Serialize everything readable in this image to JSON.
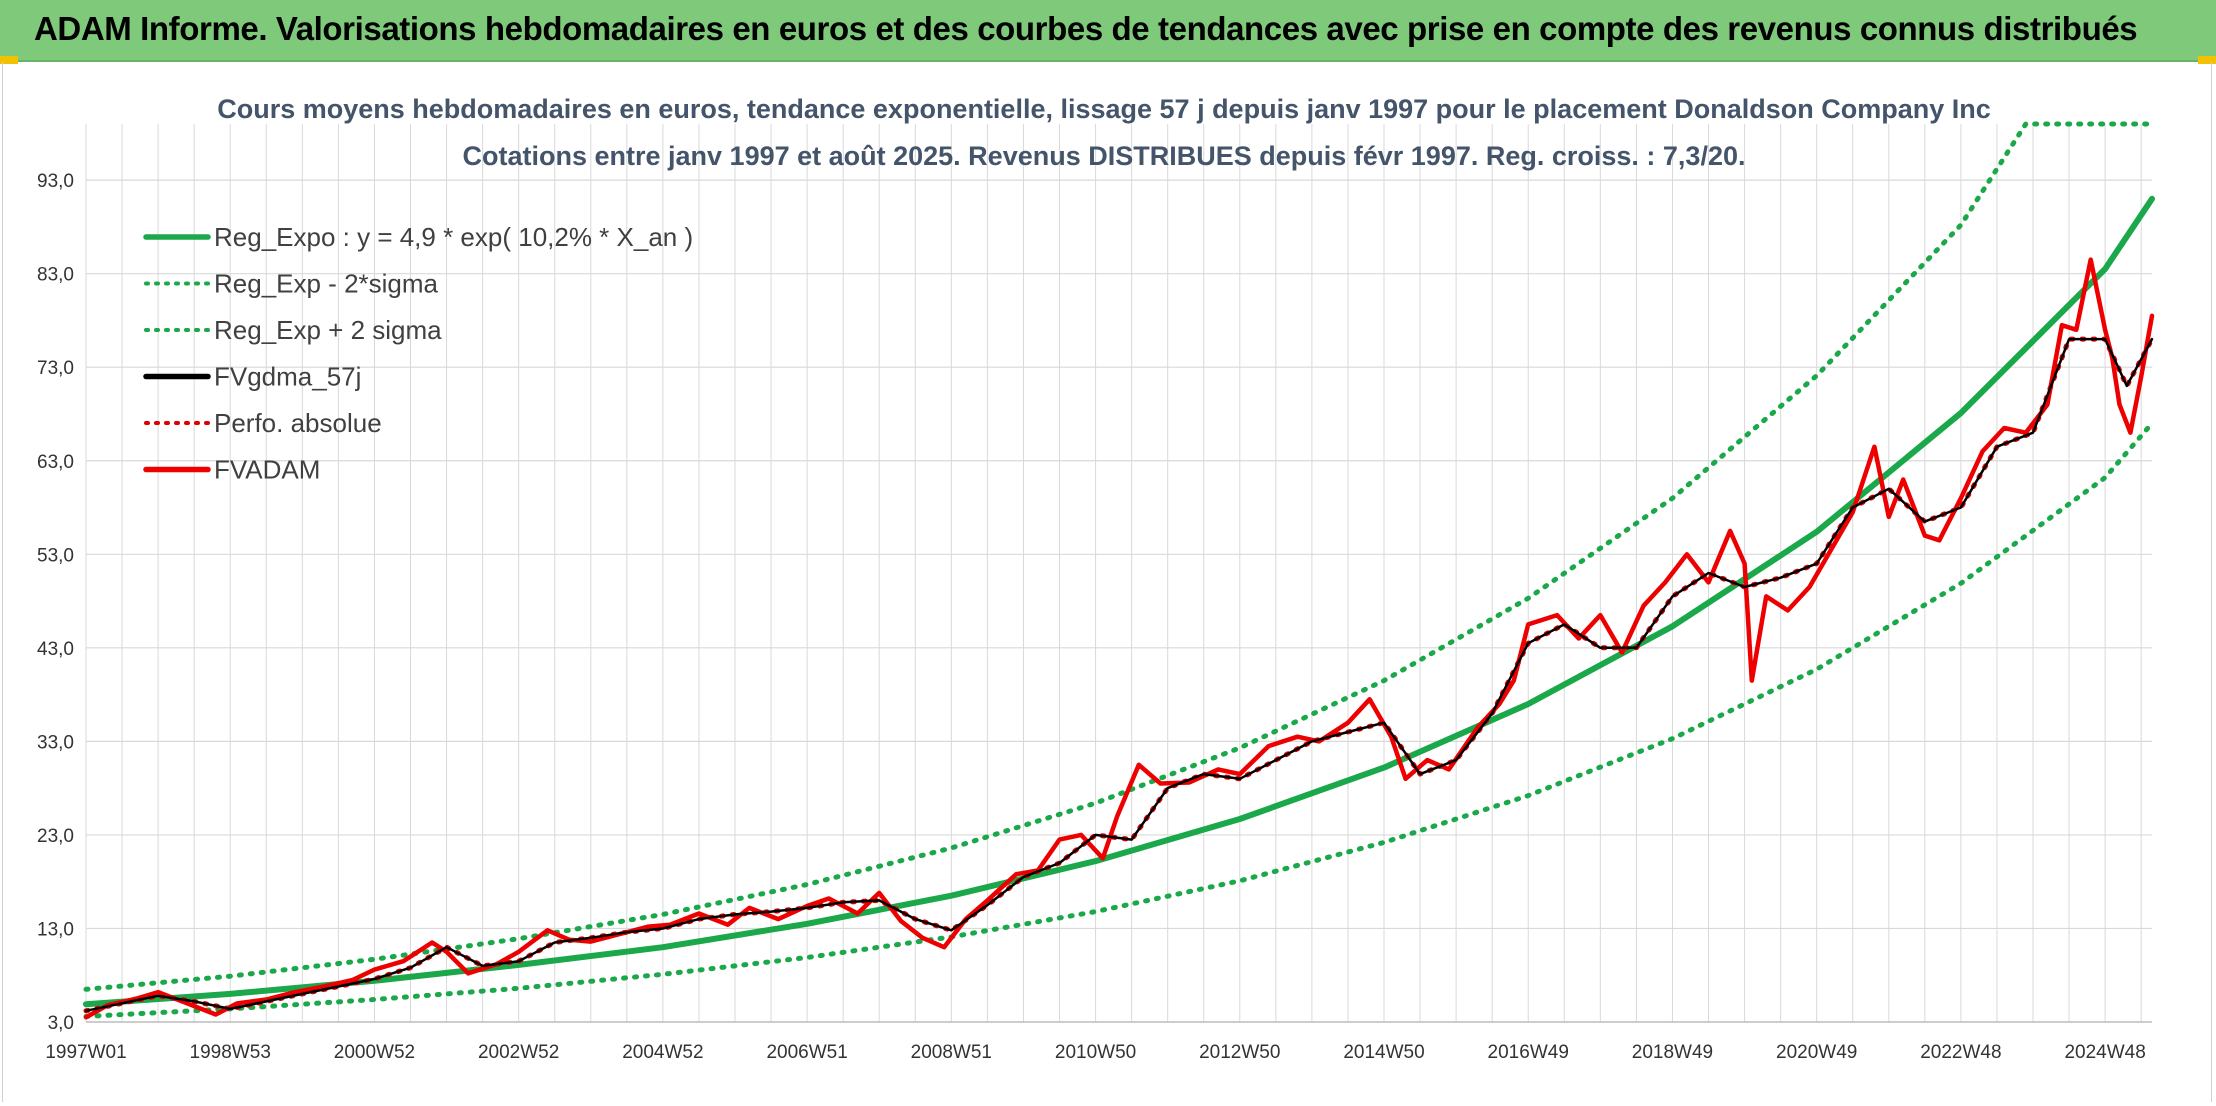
{
  "banner": {
    "title": "ADAM Informe. Valorisations hebdomadaires en euros et des courbes de tendances avec prise en compte des revenus connus distribués"
  },
  "colors": {
    "banner_bg": "#7fc97a",
    "reg_expo": "#1aa84a",
    "band": "#1aa84a",
    "fvgdma": "#000000",
    "perfo": "#e00000",
    "fvadam": "#ee0000",
    "grid": "#d9d9d9"
  },
  "chart_data": {
    "type": "line",
    "title": "Cours moyens hebdomadaires en euros, tendance exponentielle, lissage 57 j depuis janv 1997 pour le placement Donaldson Company Inc",
    "subtitle": "Cotations entre janv 1997 et août 2025. Revenus DISTRIBUES depuis févr 1997. Reg. croiss. : 7,3/20.",
    "ylim": [
      3,
      99
    ],
    "yticks": [
      3,
      13,
      23,
      33,
      43,
      53,
      63,
      73,
      83,
      93
    ],
    "ytick_labels": [
      "3,0",
      "13,0",
      "23,0",
      "33,0",
      "43,0",
      "53,0",
      "63,0",
      "73,0",
      "83,0",
      "93,0"
    ],
    "xlim": [
      1997.0,
      2025.65
    ],
    "xticks": [
      1997.0,
      1999.0,
      2001.0,
      2003.0,
      2005.0,
      2007.0,
      2009.0,
      2011.0,
      2013.0,
      2015.0,
      2017.0,
      2019.0,
      2021.0,
      2023.0,
      2025.0
    ],
    "xtick_labels": [
      "1997W01",
      "1998W53",
      "2000W52",
      "2002W52",
      "2004W52",
      "2006W51",
      "2008W51",
      "2010W50",
      "2012W50",
      "2014W50",
      "2016W49",
      "2018W49",
      "2020W49",
      "2022W48",
      "2024W48"
    ],
    "grid": true,
    "legend_placement": "top-left",
    "series": [
      {
        "name": "Reg_Expo : y = 4,9 * exp( 10,2% *  X_an )",
        "style": "solid-thick",
        "color": "#1aa84a",
        "x": [
          1997.0,
          1999.0,
          2001.0,
          2003.0,
          2005.0,
          2007.0,
          2009.0,
          2011.0,
          2013.0,
          2015.0,
          2017.0,
          2019.0,
          2021.0,
          2023.0,
          2025.0,
          2025.65
        ],
        "y": [
          4.9,
          6.0,
          7.4,
          9.1,
          11.0,
          13.5,
          16.5,
          20.2,
          24.7,
          30.2,
          37.0,
          45.3,
          55.4,
          68.1,
          83.5,
          91.0
        ]
      },
      {
        "name": "Reg_Exp - 2*sigma",
        "style": "dotted",
        "color": "#1aa84a",
        "x": [
          1997.0,
          1999.0,
          2001.0,
          2003.0,
          2005.0,
          2007.0,
          2009.0,
          2011.0,
          2013.0,
          2015.0,
          2017.0,
          2019.0,
          2021.0,
          2023.0,
          2025.0,
          2025.65
        ],
        "y": [
          3.6,
          4.4,
          5.4,
          6.6,
          8.1,
          9.9,
          12.1,
          14.8,
          18.1,
          22.2,
          27.2,
          33.3,
          40.7,
          49.9,
          61.2,
          67.0
        ]
      },
      {
        "name": "Reg_Exp + 2 sigma",
        "style": "dotted",
        "color": "#1aa84a",
        "x": [
          1997.0,
          1999.0,
          2001.0,
          2003.0,
          2005.0,
          2007.0,
          2009.0,
          2011.0,
          2013.0,
          2015.0,
          2017.0,
          2019.0,
          2021.0,
          2023.0,
          2023.9,
          2025.65
        ],
        "y": [
          6.5,
          7.9,
          9.7,
          11.9,
          14.5,
          17.7,
          21.6,
          26.4,
          32.3,
          39.5,
          48.3,
          59.0,
          72.1,
          88.2,
          99.0,
          99.0
        ]
      },
      {
        "name": "FVgdma_57j",
        "style": "solid",
        "color": "#000000",
        "x": [
          1997.0,
          1997.5,
          1998.0,
          1998.5,
          1999.0,
          1999.5,
          2000.0,
          2000.5,
          2001.0,
          2001.5,
          2002.0,
          2002.5,
          2003.0,
          2003.5,
          2004.0,
          2004.5,
          2005.0,
          2005.5,
          2006.0,
          2006.5,
          2007.0,
          2007.5,
          2008.0,
          2008.5,
          2009.0,
          2009.5,
          2010.0,
          2010.5,
          2011.0,
          2011.5,
          2012.0,
          2012.5,
          2013.0,
          2013.5,
          2014.0,
          2014.5,
          2015.0,
          2015.5,
          2016.0,
          2016.5,
          2017.0,
          2017.5,
          2018.0,
          2018.5,
          2019.0,
          2019.5,
          2020.0,
          2020.5,
          2021.0,
          2021.5,
          2022.0,
          2022.5,
          2023.0,
          2023.5,
          2024.0,
          2024.5,
          2025.0,
          2025.3,
          2025.65
        ],
        "y": [
          4.2,
          5.0,
          5.8,
          5.2,
          4.4,
          5.2,
          6.0,
          6.8,
          7.6,
          8.8,
          11.0,
          9.0,
          9.5,
          11.5,
          12.0,
          12.6,
          13.0,
          14.0,
          14.5,
          14.8,
          15.2,
          15.8,
          16.0,
          14.0,
          12.8,
          15.5,
          18.5,
          20.0,
          23.0,
          22.5,
          28.0,
          29.5,
          29.0,
          31.0,
          33.0,
          34.0,
          35.0,
          29.5,
          31.0,
          36.0,
          43.5,
          45.5,
          43.0,
          43.0,
          48.5,
          51.0,
          49.5,
          50.5,
          52.0,
          58.0,
          60.0,
          56.5,
          58.0,
          64.5,
          66.0,
          76.0,
          76.0,
          71.0,
          76.0
        ]
      },
      {
        "name": "Perfo. absolue",
        "style": "dotted",
        "color": "#e00000",
        "x": [
          1997.0,
          1997.5,
          1998.0,
          1998.5,
          1999.0,
          1999.5,
          2000.0,
          2000.5,
          2001.0,
          2001.5,
          2002.0,
          2002.5,
          2003.0,
          2003.5,
          2004.0,
          2004.5,
          2005.0,
          2005.5,
          2006.0,
          2006.5,
          2007.0,
          2007.5,
          2008.0,
          2008.5,
          2009.0,
          2009.5,
          2010.0,
          2010.5,
          2011.0,
          2011.5,
          2012.0,
          2012.5,
          2013.0,
          2013.5,
          2014.0,
          2014.5,
          2015.0,
          2015.5,
          2016.0,
          2016.5,
          2017.0,
          2017.5,
          2018.0,
          2018.5,
          2019.0,
          2019.5,
          2020.0,
          2020.5,
          2021.0,
          2021.5,
          2022.0,
          2022.5,
          2023.0,
          2023.5,
          2024.0,
          2024.5,
          2025.0,
          2025.3,
          2025.65
        ],
        "y": [
          4.2,
          5.0,
          5.8,
          5.2,
          4.4,
          5.2,
          6.0,
          6.8,
          7.6,
          8.8,
          11.0,
          9.0,
          9.5,
          11.5,
          12.0,
          12.6,
          13.0,
          14.0,
          14.5,
          14.8,
          15.2,
          15.8,
          16.0,
          14.0,
          12.8,
          15.5,
          18.5,
          20.0,
          23.0,
          22.5,
          28.0,
          29.5,
          29.0,
          31.0,
          33.0,
          34.0,
          35.0,
          29.5,
          31.0,
          36.0,
          43.5,
          45.5,
          43.0,
          43.0,
          48.5,
          51.0,
          49.5,
          50.5,
          52.0,
          58.0,
          60.0,
          56.5,
          58.0,
          64.5,
          66.0,
          76.0,
          76.0,
          71.0,
          76.0
        ]
      },
      {
        "name": "FVADAM",
        "style": "solid-thick",
        "color": "#ee0000",
        "x": [
          1997.0,
          1997.3,
          1997.7,
          1998.0,
          1998.4,
          1998.8,
          1999.1,
          1999.5,
          1999.9,
          2000.3,
          2000.7,
          2001.0,
          2001.4,
          2001.8,
          2002.0,
          2002.3,
          2002.7,
          2003.0,
          2003.4,
          2003.7,
          2004.0,
          2004.4,
          2004.8,
          2005.1,
          2005.5,
          2005.9,
          2006.2,
          2006.6,
          2007.0,
          2007.3,
          2007.7,
          2008.0,
          2008.3,
          2008.6,
          2008.9,
          2009.2,
          2009.5,
          2009.9,
          2010.2,
          2010.5,
          2010.8,
          2011.1,
          2011.3,
          2011.6,
          2011.9,
          2012.3,
          2012.7,
          2013.0,
          2013.4,
          2013.8,
          2014.1,
          2014.5,
          2014.8,
          2015.1,
          2015.3,
          2015.6,
          2015.9,
          2016.3,
          2016.6,
          2016.8,
          2017.0,
          2017.4,
          2017.7,
          2018.0,
          2018.3,
          2018.6,
          2018.9,
          2019.2,
          2019.5,
          2019.8,
          2020.0,
          2020.1,
          2020.3,
          2020.6,
          2020.9,
          2021.2,
          2021.5,
          2021.8,
          2022.0,
          2022.2,
          2022.5,
          2022.7,
          2023.0,
          2023.3,
          2023.6,
          2023.9,
          2024.2,
          2024.4,
          2024.6,
          2024.8,
          2025.0,
          2025.1,
          2025.2,
          2025.35,
          2025.5,
          2025.65
        ],
        "y": [
          3.5,
          4.8,
          5.5,
          6.2,
          5.0,
          3.8,
          5.0,
          5.4,
          6.2,
          6.8,
          7.5,
          8.6,
          9.5,
          11.5,
          10.5,
          8.2,
          9.2,
          10.5,
          12.8,
          11.8,
          11.6,
          12.4,
          13.2,
          13.4,
          14.6,
          13.4,
          15.2,
          14.0,
          15.4,
          16.2,
          14.6,
          16.8,
          13.8,
          12.0,
          11.0,
          14.0,
          16.0,
          18.8,
          19.2,
          22.5,
          23.0,
          20.5,
          25.0,
          30.5,
          28.5,
          28.6,
          30.0,
          29.5,
          32.5,
          33.5,
          33.0,
          35.0,
          37.5,
          33.5,
          29.0,
          31.0,
          30.0,
          34.5,
          37.0,
          39.5,
          45.5,
          46.5,
          44.0,
          46.5,
          42.5,
          47.5,
          50.0,
          53.0,
          50.0,
          55.5,
          52.0,
          39.5,
          48.5,
          47.0,
          49.5,
          53.5,
          57.5,
          64.5,
          57.0,
          61.0,
          55.0,
          54.5,
          59.0,
          64.0,
          66.5,
          66.0,
          69.0,
          77.5,
          77.0,
          84.5,
          77.0,
          74.0,
          69.0,
          66.0,
          72.0,
          78.5
        ]
      }
    ]
  }
}
